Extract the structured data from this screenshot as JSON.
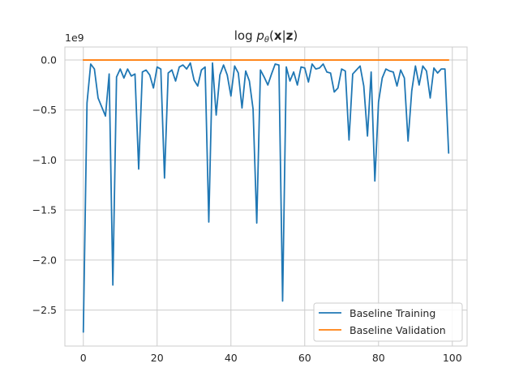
{
  "chart_data": {
    "type": "line",
    "title": "log p_θ(x|z)",
    "title_parts": {
      "prefix": "log ",
      "p": "p",
      "sub": "θ",
      "open": "(",
      "x": "x",
      "bar": "|",
      "z": "z",
      "close": ")"
    },
    "offset_text": "1e9",
    "xlabel": "",
    "ylabel": "",
    "xlim": [
      -5,
      104
    ],
    "ylim": [
      -2.86,
      0.13
    ],
    "x_ticks": [
      0,
      20,
      40,
      60,
      80,
      100
    ],
    "y_ticks": [
      0.0,
      -0.5,
      -1.0,
      -1.5,
      -2.0,
      -2.5
    ],
    "y_tick_labels": [
      "0.0",
      "−0.5",
      "−1.0",
      "−1.5",
      "−2.0",
      "−2.5"
    ],
    "y_unit_multiplier": 1000000000.0,
    "grid": true,
    "legend_position": "lower-right",
    "x": [
      0,
      1,
      2,
      3,
      4,
      5,
      6,
      7,
      8,
      9,
      10,
      11,
      12,
      13,
      14,
      15,
      16,
      17,
      18,
      19,
      20,
      21,
      22,
      23,
      24,
      25,
      26,
      27,
      28,
      29,
      30,
      31,
      32,
      33,
      34,
      35,
      36,
      37,
      38,
      39,
      40,
      41,
      42,
      43,
      44,
      45,
      46,
      47,
      48,
      49,
      50,
      51,
      52,
      53,
      54,
      55,
      56,
      57,
      58,
      59,
      60,
      61,
      62,
      63,
      64,
      65,
      66,
      67,
      68,
      69,
      70,
      71,
      72,
      73,
      74,
      75,
      76,
      77,
      78,
      79,
      80,
      81,
      82,
      83,
      84,
      85,
      86,
      87,
      88,
      89,
      90,
      91,
      92,
      93,
      94,
      95,
      96,
      97,
      98,
      99
    ],
    "series": [
      {
        "name": "Baseline Training",
        "color": "#1f77b4",
        "values": [
          -2.72,
          -0.43,
          -0.04,
          -0.09,
          -0.38,
          -0.47,
          -0.56,
          -0.14,
          -2.25,
          -0.17,
          -0.09,
          -0.18,
          -0.09,
          -0.16,
          -0.14,
          -1.09,
          -0.12,
          -0.1,
          -0.15,
          -0.28,
          -0.07,
          -0.09,
          -1.18,
          -0.13,
          -0.1,
          -0.21,
          -0.07,
          -0.05,
          -0.09,
          -0.03,
          -0.2,
          -0.26,
          -0.1,
          -0.07,
          -1.62,
          -0.03,
          -0.55,
          -0.15,
          -0.05,
          -0.15,
          -0.36,
          -0.06,
          -0.13,
          -0.48,
          -0.11,
          -0.21,
          -0.49,
          -1.63,
          -0.1,
          -0.17,
          -0.25,
          -0.14,
          -0.04,
          -0.05,
          -2.41,
          -0.07,
          -0.21,
          -0.12,
          -0.25,
          -0.07,
          -0.08,
          -0.22,
          -0.04,
          -0.09,
          -0.08,
          -0.04,
          -0.12,
          -0.13,
          -0.32,
          -0.28,
          -0.09,
          -0.11,
          -0.8,
          -0.14,
          -0.1,
          -0.06,
          -0.26,
          -0.76,
          -0.12,
          -1.21,
          -0.42,
          -0.18,
          -0.09,
          -0.11,
          -0.12,
          -0.26,
          -0.1,
          -0.18,
          -0.81,
          -0.31,
          -0.06,
          -0.25,
          -0.06,
          -0.11,
          -0.38,
          -0.08,
          -0.13,
          -0.09,
          -0.09,
          -0.93
        ]
      },
      {
        "name": "Baseline Validation",
        "color": "#ff7f0e",
        "values": [
          0,
          0,
          0,
          0,
          0,
          0,
          0,
          0,
          0,
          0,
          0,
          0,
          0,
          0,
          0,
          0,
          0,
          0,
          0,
          0,
          0,
          0,
          0,
          0,
          0,
          0,
          0,
          0,
          0,
          0,
          0,
          0,
          0,
          0,
          0,
          0,
          0,
          0,
          0,
          0,
          0,
          0,
          0,
          0,
          0,
          0,
          0,
          0,
          0,
          0,
          0,
          0,
          0,
          0,
          0,
          0,
          0,
          0,
          0,
          0,
          0,
          0,
          0,
          0,
          0,
          0,
          0,
          0,
          0,
          0,
          0,
          0,
          0,
          0,
          0,
          0,
          0,
          0,
          0,
          0,
          0,
          0,
          0,
          0,
          0,
          0,
          0,
          0,
          0,
          0,
          0,
          0,
          0,
          0,
          0,
          0,
          0,
          0,
          0,
          0
        ]
      }
    ]
  }
}
